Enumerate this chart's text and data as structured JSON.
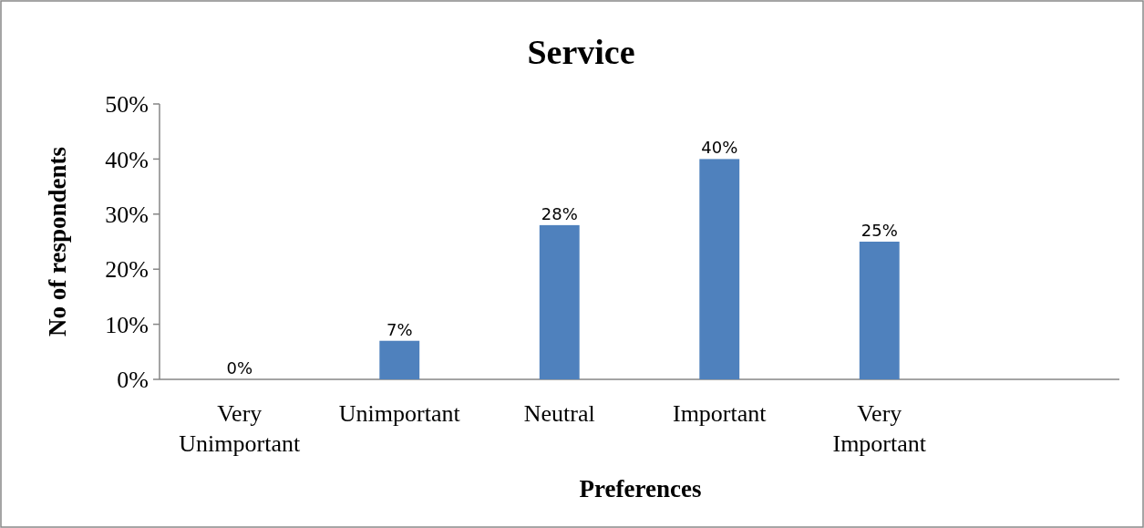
{
  "chart_data": {
    "type": "bar",
    "title": "Service",
    "xlabel": "Preferences",
    "ylabel": "No of respondents",
    "categories": [
      "Very Unimportant",
      "Unimportant",
      "Neutral",
      "Important",
      "Very Important",
      null
    ],
    "values": [
      0,
      7,
      28,
      40,
      25,
      null
    ],
    "value_labels": [
      "0%",
      "7%",
      "28%",
      "40%",
      "25%",
      null
    ],
    "color": "#4f81bd",
    "ylim": [
      0,
      50
    ],
    "yticks": [
      {
        "value": 0,
        "label": "0%"
      },
      {
        "value": 10,
        "label": "10%"
      },
      {
        "value": 20,
        "label": "20%"
      },
      {
        "value": 30,
        "label": "30%"
      },
      {
        "value": 40,
        "label": "40%"
      },
      {
        "value": 50,
        "label": "50%"
      }
    ],
    "grid": false
  }
}
